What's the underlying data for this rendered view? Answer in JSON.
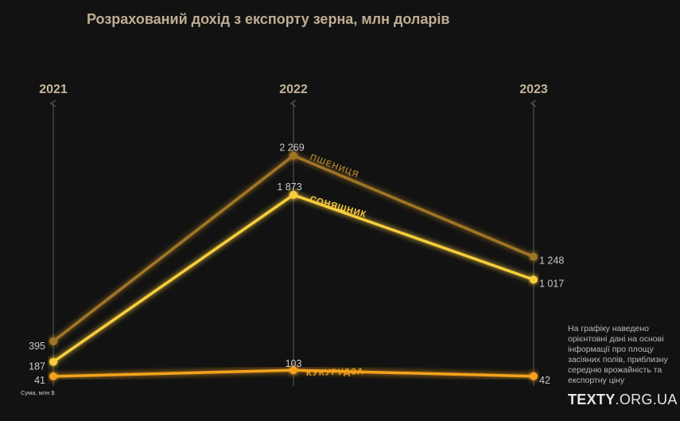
{
  "title": "Розрахований дохід з експорту зерна, млн доларів",
  "note": "На графіку наведено орієнтовні дані на основі інформації про площу засіяних полів, приблизну середню врожайність та експортну ціну",
  "logo": {
    "bold": "TEXTY",
    "rest": ".ORG.UA"
  },
  "axis_unit_label": "Сума, млн $",
  "colors": {
    "background": "#121212",
    "axis": "#5a5a5a",
    "title": "#bfae94"
  },
  "chart_data": {
    "type": "line",
    "title": "Розрахований дохід з експорту зерна, млн доларів",
    "x": [
      "2021",
      "2022",
      "2023"
    ],
    "ylabel": "Сума, млн $",
    "grid": false,
    "legend": "inline-labels",
    "series": [
      {
        "name": "ПШЕНИЦЯ",
        "values": [
          395,
          2269,
          1248
        ],
        "value_labels": [
          "395",
          "2 269",
          "1 248"
        ],
        "color": "#a07628"
      },
      {
        "name": "СОНЯШНИК",
        "values": [
          187,
          1873,
          1017
        ],
        "value_labels": [
          "187",
          "1 873",
          "1 017"
        ],
        "color": "#f7cc3e"
      },
      {
        "name": "КУКУРУДЗА",
        "values": [
          41,
          103,
          42
        ],
        "value_labels": [
          "41",
          "103",
          "42"
        ],
        "color": "#f3a21c"
      }
    ]
  }
}
